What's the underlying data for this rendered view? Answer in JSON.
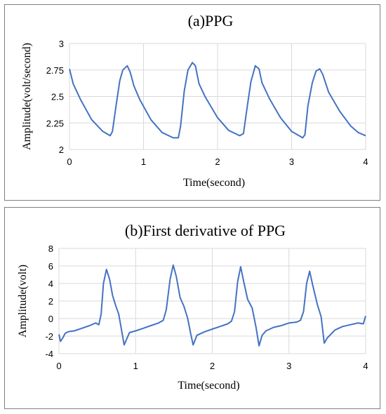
{
  "colors": {
    "series": "#4472C4",
    "grid": "#d9d9d9",
    "border": "#7f7f7f"
  },
  "chart_data": [
    {
      "type": "line",
      "title": "(a)PPG",
      "xlabel": "Time(second)",
      "ylabel": "Amplitude(volt/second)",
      "xlim": [
        0,
        4
      ],
      "ylim": [
        2,
        3
      ],
      "xticks": [
        0,
        1,
        2,
        3,
        4
      ],
      "yticks": [
        2,
        2.25,
        2.5,
        2.75,
        3
      ],
      "ytick_labels": [
        "2",
        "2.25",
        "2.5",
        "2.75",
        "3"
      ],
      "grid": true,
      "series": [
        {
          "x": [
            0.0,
            0.05,
            0.15,
            0.3,
            0.45,
            0.55,
            0.58,
            0.63,
            0.68,
            0.72,
            0.78,
            0.82,
            0.87,
            0.95,
            1.1,
            1.25,
            1.4,
            1.47,
            1.5,
            1.55,
            1.6,
            1.66,
            1.7,
            1.75,
            1.83,
            2.0,
            2.15,
            2.3,
            2.35,
            2.4,
            2.45,
            2.51,
            2.56,
            2.6,
            2.7,
            2.85,
            3.0,
            3.15,
            3.18,
            3.22,
            3.28,
            3.33,
            3.38,
            3.42,
            3.5,
            3.65,
            3.8,
            3.9,
            4.0
          ],
          "y": [
            2.76,
            2.62,
            2.47,
            2.28,
            2.17,
            2.13,
            2.17,
            2.42,
            2.65,
            2.75,
            2.79,
            2.73,
            2.6,
            2.47,
            2.28,
            2.16,
            2.11,
            2.11,
            2.22,
            2.55,
            2.75,
            2.82,
            2.79,
            2.62,
            2.5,
            2.3,
            2.18,
            2.13,
            2.15,
            2.4,
            2.64,
            2.79,
            2.76,
            2.63,
            2.48,
            2.3,
            2.17,
            2.11,
            2.14,
            2.41,
            2.63,
            2.74,
            2.76,
            2.71,
            2.54,
            2.36,
            2.22,
            2.16,
            2.13
          ]
        }
      ]
    },
    {
      "type": "line",
      "title": "(b)First derivative of PPG",
      "xlabel": "Time(second)",
      "ylabel": "Amplitude(volt)",
      "xlim": [
        0,
        4
      ],
      "ylim": [
        -4,
        8
      ],
      "xticks": [
        0,
        1,
        2,
        3,
        4
      ],
      "yticks": [
        -4,
        -2,
        0,
        2,
        4,
        6,
        8
      ],
      "ytick_labels": [
        "-4",
        "-2",
        "0",
        "2",
        "4",
        "6",
        "8"
      ],
      "grid": true,
      "series": [
        {
          "x": [
            0.0,
            0.02,
            0.05,
            0.08,
            0.12,
            0.2,
            0.3,
            0.4,
            0.48,
            0.52,
            0.55,
            0.58,
            0.62,
            0.66,
            0.7,
            0.74,
            0.78,
            0.82,
            0.85,
            0.88,
            0.92,
            1.0,
            1.1,
            1.2,
            1.3,
            1.36,
            1.4,
            1.45,
            1.49,
            1.53,
            1.58,
            1.63,
            1.68,
            1.72,
            1.75,
            1.8,
            1.9,
            2.0,
            2.1,
            2.2,
            2.25,
            2.29,
            2.33,
            2.37,
            2.41,
            2.46,
            2.52,
            2.57,
            2.61,
            2.65,
            2.7,
            2.8,
            2.9,
            3.0,
            3.1,
            3.15,
            3.19,
            3.23,
            3.27,
            3.31,
            3.37,
            3.42,
            3.46,
            3.5,
            3.6,
            3.7,
            3.8,
            3.9,
            3.97,
            4.0
          ],
          "y": [
            -1.8,
            -2.6,
            -2.2,
            -1.7,
            -1.5,
            -1.4,
            -1.1,
            -0.8,
            -0.5,
            -0.7,
            0.5,
            4.0,
            5.6,
            4.5,
            2.6,
            1.5,
            0.5,
            -1.5,
            -3.0,
            -2.4,
            -1.6,
            -1.4,
            -1.1,
            -0.8,
            -0.5,
            -0.2,
            1.0,
            4.5,
            6.1,
            4.8,
            2.4,
            1.4,
            0.0,
            -1.8,
            -3.0,
            -1.9,
            -1.5,
            -1.2,
            -0.9,
            -0.6,
            -0.3,
            0.8,
            4.2,
            5.9,
            4.2,
            2.2,
            1.2,
            -1.0,
            -3.1,
            -1.9,
            -1.4,
            -1.0,
            -0.8,
            -0.5,
            -0.4,
            -0.2,
            0.8,
            4.0,
            5.4,
            3.8,
            1.6,
            0.2,
            -2.8,
            -2.2,
            -1.3,
            -0.9,
            -0.7,
            -0.5,
            -0.6,
            0.3
          ]
        }
      ]
    }
  ]
}
